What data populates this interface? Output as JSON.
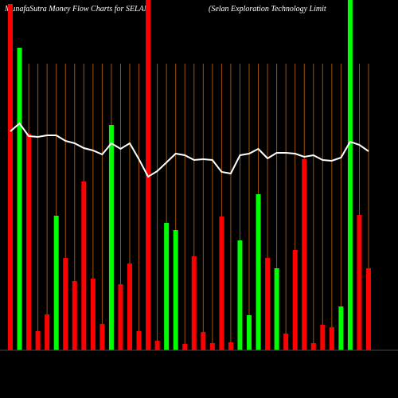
{
  "chart_data": {
    "type": "bar",
    "title": "MunafaSutra  Money Flow  Charts for SELAN",
    "subtitle": "(Selan  Exploration  Technology Limit",
    "categories": [
      null,
      null,
      null,
      null,
      null,
      null,
      null,
      null,
      null,
      null,
      null,
      null,
      null,
      null,
      null,
      null,
      null,
      null,
      null,
      null,
      null,
      null,
      null,
      null,
      null,
      null,
      null,
      null,
      null,
      null,
      null,
      null,
      null,
      null,
      null,
      null,
      null,
      null,
      null,
      null
    ],
    "values": [
      435,
      380,
      272,
      24,
      45,
      169,
      116,
      87,
      212,
      90,
      33,
      283,
      83,
      109,
      24,
      440,
      12,
      160,
      151,
      8,
      118,
      23,
      9,
      168,
      10,
      138,
      44,
      196,
      116,
      103,
      21,
      126,
      240,
      9,
      32,
      29,
      55,
      440,
      170,
      103
    ],
    "colors": [
      "#ff0000",
      "#00ff00",
      "#ff0000",
      "#ff0000",
      "#ff0000",
      "#00ff00",
      "#ff0000",
      "#ff0000",
      "#ff0000",
      "#ff0000",
      "#ff0000",
      "#00ff00",
      "#ff0000",
      "#ff0000",
      "#ff0000",
      "#ff0000",
      "#ff0000",
      "#00ff00",
      "#00ff00",
      "#ff0000",
      "#ff0000",
      "#ff0000",
      "#ff0000",
      "#ff0000",
      "#ff0000",
      "#00ff00",
      "#00ff00",
      "#00ff00",
      "#ff0000",
      "#00ff00",
      "#ff0000",
      "#ff0000",
      "#ff0000",
      "#ff0000",
      "#ff0000",
      "#ff0000",
      "#00ff00",
      "#00ff00",
      "#ff0000",
      "#ff0000"
    ],
    "line_values": [
      275,
      285,
      269,
      268,
      270,
      270,
      263,
      260,
      254,
      251,
      246,
      260,
      253,
      260,
      240,
      218,
      225,
      236,
      247,
      245,
      239,
      240,
      239,
      224,
      222,
      245,
      247,
      253,
      241,
      248,
      248,
      247,
      243,
      245,
      239,
      238,
      242,
      262,
      258,
      250
    ],
    "line_color": "#ffffff",
    "grid_color": "#a0520a",
    "ylim": [
      0,
      440
    ]
  }
}
